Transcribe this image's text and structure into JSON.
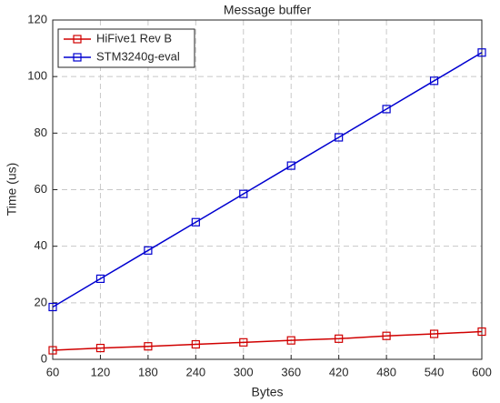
{
  "chart_data": {
    "type": "line",
    "title": "Message buffer",
    "x_label": "Bytes",
    "y_label": "Time (us)",
    "x": [
      60,
      120,
      180,
      240,
      300,
      360,
      420,
      480,
      540,
      600
    ],
    "series": [
      {
        "name": "HiFive1 Rev B",
        "color": "#d00000",
        "values": [
          3.2,
          4.0,
          4.6,
          5.3,
          6.0,
          6.7,
          7.3,
          8.3,
          9.0,
          9.8
        ]
      },
      {
        "name": "STM3240g-eval",
        "color": "#0000d0",
        "values": [
          18.5,
          28.5,
          38.5,
          48.5,
          58.5,
          68.5,
          78.5,
          88.5,
          98.5,
          108.5
        ]
      }
    ],
    "xlim": [
      60,
      600
    ],
    "xticks": [
      60,
      120,
      180,
      240,
      300,
      360,
      420,
      480,
      540,
      600
    ],
    "ylim": [
      0,
      120
    ],
    "yticks": [
      0,
      20,
      40,
      60,
      80,
      100,
      120
    ],
    "grid": true,
    "legend": "upper left"
  }
}
